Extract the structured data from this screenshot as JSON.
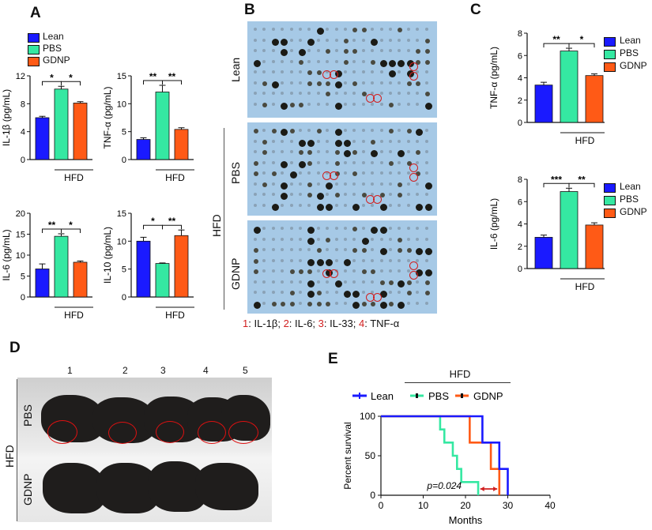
{
  "panels": {
    "A": "A",
    "B": "B",
    "C": "C",
    "D": "D",
    "E": "E"
  },
  "colors": {
    "lean": "#1a1aff",
    "pbs": "#35e8a2",
    "gdnp": "#ff5a16",
    "blot_bg": "#a6c9e6",
    "red": "#d11f1f"
  },
  "legendA": [
    {
      "label": "Lean",
      "color": "#1a1aff"
    },
    {
      "label": "PBS",
      "color": "#35e8a2"
    },
    {
      "label": "GDNP",
      "color": "#ff5a16"
    }
  ],
  "legendC1": [
    {
      "label": "Lean",
      "color": "#1a1aff"
    },
    {
      "label": "PBS",
      "color": "#35e8a2"
    },
    {
      "label": "GDNP",
      "color": "#ff5a16"
    }
  ],
  "legendC2": [
    {
      "label": "Lean",
      "color": "#1a1aff"
    },
    {
      "label": "PBS",
      "color": "#35e8a2"
    },
    {
      "label": "GDNP",
      "color": "#ff5a16"
    }
  ],
  "hfd": "HFD",
  "chart_data": [
    {
      "id": "A1",
      "type": "bar",
      "ylabel": "IL-1β (pg/mL)",
      "ylim": [
        0,
        12
      ],
      "yticks": [
        0,
        4,
        8,
        12
      ],
      "categories": [
        "Lean",
        "PBS",
        "GDNP"
      ],
      "values": [
        6,
        10.1,
        8.1
      ],
      "errors": [
        0.2,
        0.4,
        0.2
      ],
      "group_label": "HFD",
      "sig": [
        {
          "from": 0,
          "to": 1,
          "text": "*"
        },
        {
          "from": 1,
          "to": 2,
          "text": "*"
        }
      ]
    },
    {
      "id": "A2",
      "type": "bar",
      "ylabel": "TNF-α (pg/mL)",
      "ylim": [
        0,
        15
      ],
      "yticks": [
        0,
        5,
        10,
        15
      ],
      "categories": [
        "Lean",
        "PBS",
        "GDNP"
      ],
      "values": [
        3.6,
        12.1,
        5.4
      ],
      "errors": [
        0.3,
        1.2,
        0.3
      ],
      "group_label": "HFD",
      "sig": [
        {
          "from": 0,
          "to": 1,
          "text": "**"
        },
        {
          "from": 1,
          "to": 2,
          "text": "**"
        }
      ]
    },
    {
      "id": "A3",
      "type": "bar",
      "ylabel": "IL-6 (pg/mL)",
      "ylim": [
        0,
        20
      ],
      "yticks": [
        0,
        5,
        10,
        15,
        20
      ],
      "categories": [
        "Lean",
        "PBS",
        "GDNP"
      ],
      "values": [
        6.7,
        14.5,
        8.3
      ],
      "errors": [
        1.2,
        0.6,
        0.3
      ],
      "group_label": "HFD",
      "sig": [
        {
          "from": 0,
          "to": 1,
          "text": "**"
        },
        {
          "from": 1,
          "to": 2,
          "text": "*"
        }
      ]
    },
    {
      "id": "A4",
      "type": "bar",
      "ylabel": "IL-10 (pg/mL)",
      "ylim": [
        0,
        15
      ],
      "yticks": [
        0,
        5,
        10,
        15
      ],
      "categories": [
        "Lean",
        "PBS",
        "GDNP"
      ],
      "values": [
        10,
        6,
        11
      ],
      "errors": [
        0.7,
        0.1,
        1.0
      ],
      "group_label": "HFD",
      "sig": [
        {
          "from": 0,
          "to": 1,
          "text": "*"
        },
        {
          "from": 1,
          "to": 2,
          "text": "**"
        }
      ]
    },
    {
      "id": "C1",
      "type": "bar",
      "ylabel": "TNF-α (pg/mL)",
      "ylim": [
        0,
        8
      ],
      "yticks": [
        0,
        2,
        4,
        6,
        8
      ],
      "categories": [
        "Lean",
        "PBS",
        "GDNP"
      ],
      "values": [
        3.35,
        6.4,
        4.2
      ],
      "errors": [
        0.25,
        0.25,
        0.15
      ],
      "group_label": "HFD",
      "sig": [
        {
          "from": 0,
          "to": 1,
          "text": "**"
        },
        {
          "from": 1,
          "to": 2,
          "text": "*"
        }
      ]
    },
    {
      "id": "C2",
      "type": "bar",
      "ylabel": "IL-6 (pg/mL)",
      "ylim": [
        0,
        8
      ],
      "yticks": [
        0,
        2,
        4,
        6,
        8
      ],
      "categories": [
        "Lean",
        "PBS",
        "GDNP"
      ],
      "values": [
        2.8,
        6.9,
        3.9
      ],
      "errors": [
        0.2,
        0.3,
        0.2
      ],
      "group_label": "HFD",
      "sig": [
        {
          "from": 0,
          "to": 1,
          "text": "***"
        },
        {
          "from": 1,
          "to": 2,
          "text": "**"
        }
      ]
    },
    {
      "id": "E",
      "type": "line",
      "subtype": "kaplan-meier",
      "xlabel": "Months",
      "ylabel": "Percent survival",
      "xlim": [
        0,
        40
      ],
      "ylim": [
        0,
        100
      ],
      "xticks": [
        0,
        10,
        20,
        30,
        40
      ],
      "yticks": [
        0,
        50,
        100
      ],
      "series": [
        {
          "name": "Lean",
          "color": "#1a1aff",
          "steps": [
            [
              0,
              100
            ],
            [
              24,
              100
            ],
            [
              24,
              66.7
            ],
            [
              28,
              66.7
            ],
            [
              28,
              33.3
            ],
            [
              30,
              33.3
            ],
            [
              30,
              0
            ]
          ]
        },
        {
          "name": "PBS",
          "color": "#35e8a2",
          "steps": [
            [
              0,
              100
            ],
            [
              14,
              100
            ],
            [
              14,
              83.3
            ],
            [
              15,
              83.3
            ],
            [
              15,
              66.7
            ],
            [
              17,
              66.7
            ],
            [
              17,
              50
            ],
            [
              18,
              50
            ],
            [
              18,
              33.3
            ],
            [
              19,
              33.3
            ],
            [
              19,
              16.7
            ],
            [
              23,
              16.7
            ],
            [
              23,
              0
            ]
          ]
        },
        {
          "name": "GDNP",
          "color": "#ff5a16",
          "steps": [
            [
              0,
              100
            ],
            [
              21,
              100
            ],
            [
              21,
              66.7
            ],
            [
              23,
              66.7
            ],
            [
              23,
              66.7
            ],
            [
              26,
              66.7
            ],
            [
              26,
              33.3
            ],
            [
              28,
              33.3
            ],
            [
              28,
              0
            ]
          ]
        }
      ],
      "annotation": "p=0.024",
      "group_label": "HFD"
    }
  ],
  "panelB": {
    "rows": [
      "Lean",
      "PBS",
      "GDNP"
    ],
    "group_label": "HFD",
    "caption": [
      {
        "num": "1",
        "text": ": IL-1β; "
      },
      {
        "num": "2",
        "text": ": IL-6; "
      },
      {
        "num": "3",
        "text": ": IL-33; "
      },
      {
        "num": "4",
        "text": ": TNF-α"
      }
    ],
    "marks": [
      "1",
      "1",
      "2",
      "2",
      "3",
      "3",
      "4",
      "4"
    ]
  },
  "panelD": {
    "columns": [
      "1",
      "2",
      "3",
      "4",
      "5"
    ],
    "rows": [
      "PBS",
      "GDNP"
    ],
    "group_label": "HFD"
  },
  "legendE": [
    {
      "label": "Lean",
      "color": "#1a1aff"
    },
    {
      "label": "PBS",
      "color": "#35e8a2"
    },
    {
      "label": "GDNP",
      "color": "#ff5a16"
    }
  ]
}
